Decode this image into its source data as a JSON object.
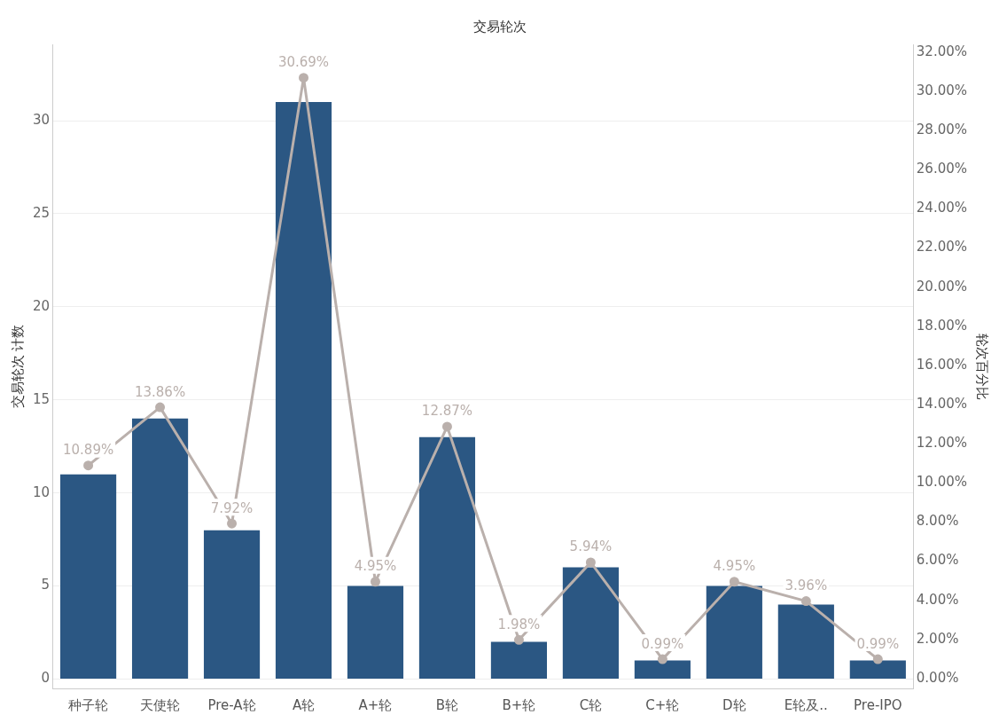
{
  "chart_data": {
    "type": "bar",
    "title": "交易轮次",
    "ylabel": "交易轮次 计数",
    "y2label": "轮次百分比",
    "categories": [
      "种子轮",
      "天使轮",
      "Pre-A轮",
      "A轮",
      "A+轮",
      "B轮",
      "B+轮",
      "C轮",
      "C+轮",
      "D轮",
      "E轮及..",
      "Pre-IPO"
    ],
    "series": [
      {
        "color": "#2b5783",
        "values": [
          11,
          14,
          8,
          31,
          5,
          13,
          2,
          6,
          1,
          5,
          4,
          1
        ]
      },
      {
        "type": "line",
        "axis": "y2",
        "color": "#bab0ac",
        "marker": "circle",
        "values": [
          10.89,
          13.86,
          7.92,
          30.69,
          4.95,
          12.87,
          1.98,
          5.94,
          0.99,
          4.95,
          3.96,
          0.99
        ],
        "value_labels": [
          "10.89%",
          "13.86%",
          "7.92%",
          "30.69%",
          "4.95%",
          "12.87%",
          "1.98%",
          "5.94%",
          "0.99%",
          "4.95%",
          "3.96%",
          "0.99%"
        ]
      }
    ],
    "ylim": [
      -0.5,
      34.1
    ],
    "yticks": [
      0,
      5,
      10,
      15,
      20,
      25,
      30
    ],
    "y2lim": [
      -0.5,
      32.4
    ],
    "y2ticks": [
      {
        "value": 0,
        "label": "0.00%"
      },
      {
        "value": 2,
        "label": "2.00%"
      },
      {
        "value": 4,
        "label": "4.00%"
      },
      {
        "value": 6,
        "label": "6.00%"
      },
      {
        "value": 8,
        "label": "8.00%"
      },
      {
        "value": 10,
        "label": "10.00%"
      },
      {
        "value": 12,
        "label": "12.00%"
      },
      {
        "value": 14,
        "label": "14.00%"
      },
      {
        "value": 16,
        "label": "16.00%"
      },
      {
        "value": 18,
        "label": "18.00%"
      },
      {
        "value": 20,
        "label": "20.00%"
      },
      {
        "value": 22,
        "label": "22.00%"
      },
      {
        "value": 24,
        "label": "24.00%"
      },
      {
        "value": 26,
        "label": "26.00%"
      },
      {
        "value": 28,
        "label": "28.00%"
      },
      {
        "value": 30,
        "label": "30.00%"
      },
      {
        "value": 32,
        "label": "32.00%"
      }
    ],
    "grid": "y",
    "legend": false
  }
}
